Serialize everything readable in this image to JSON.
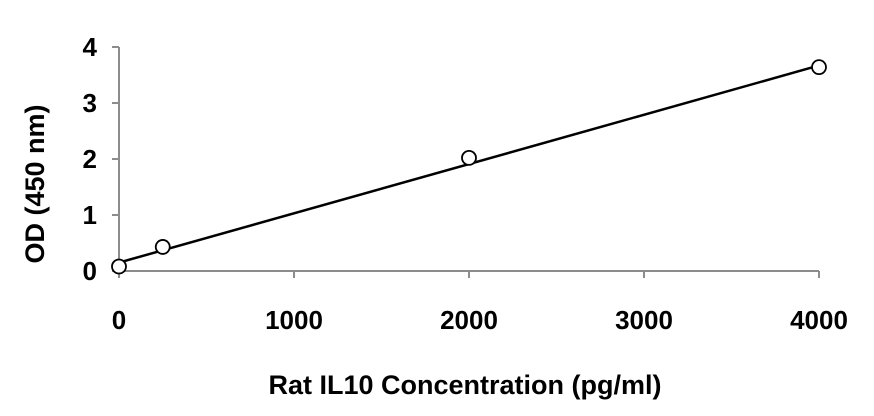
{
  "chart_data": {
    "type": "scatter",
    "title": "",
    "xlabel": "Rat IL10 Concentration (pg/ml)",
    "ylabel": "OD (450 nm)",
    "xlim": [
      0,
      4000
    ],
    "ylim": [
      0,
      4
    ],
    "x_ticks": [
      0,
      1000,
      2000,
      3000,
      4000
    ],
    "y_ticks": [
      0,
      1,
      2,
      3,
      4
    ],
    "grid": false,
    "legend": "none",
    "points": [
      {
        "x": 0,
        "y": 0.08
      },
      {
        "x": 250,
        "y": 0.43
      },
      {
        "x": 2000,
        "y": 2.02
      },
      {
        "x": 4000,
        "y": 3.64
      }
    ],
    "trendline": {
      "type": "linear",
      "x_start": 0,
      "y_start": 0.15,
      "x_end": 4000,
      "y_end": 3.67
    },
    "colors": {
      "marker_fill": "#ffffff",
      "marker_stroke": "#000000",
      "line": "#000000",
      "axis": "#8c8c8c"
    }
  }
}
